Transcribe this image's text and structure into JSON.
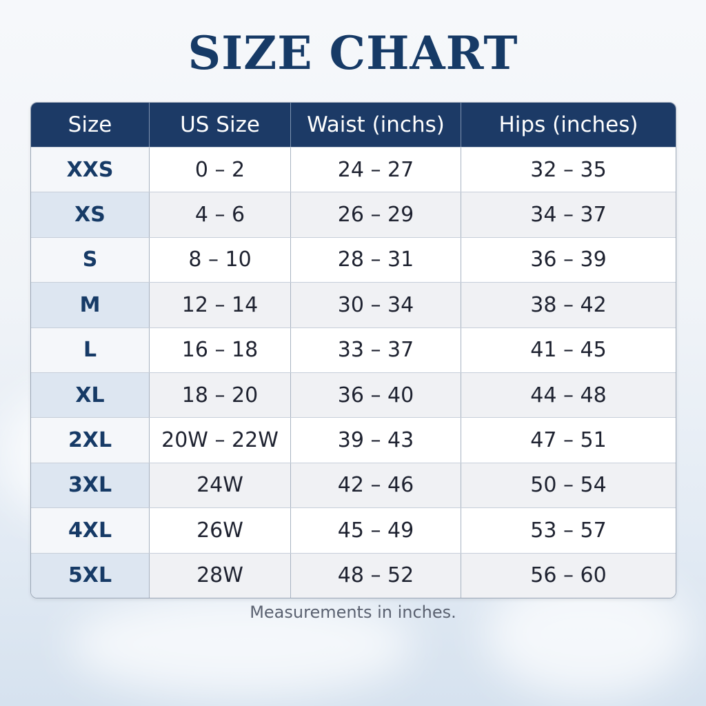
{
  "title": "SIZE CHART",
  "table": {
    "headers": [
      "Size",
      "US Size",
      "Waist (inchs)",
      "Hips (inches)"
    ],
    "rows": [
      [
        "XXS",
        "0 – 2",
        "24 – 27",
        "32 – 35"
      ],
      [
        "XS",
        "4 – 6",
        "26 – 29",
        "34 – 37"
      ],
      [
        "S",
        "8 – 10",
        "28 – 31",
        "36 – 39"
      ],
      [
        "M",
        "12 – 14",
        "30 – 34",
        "38 – 42"
      ],
      [
        "L",
        "16 – 18",
        "33 – 37",
        "41 – 45"
      ],
      [
        "XL",
        "18 – 20",
        "36 – 40",
        "44 – 48"
      ],
      [
        "2XL",
        "20W – 22W",
        "39 – 43",
        "47 – 51"
      ],
      [
        "3XL",
        "24W",
        "42 – 46",
        "50 – 54"
      ],
      [
        "4XL",
        "26W",
        "45 – 49",
        "53 – 57"
      ],
      [
        "5XL",
        "28W",
        "48 – 52",
        "56 – 60"
      ]
    ]
  },
  "note": "Measurements in inches.",
  "colors": {
    "header": "#1c3a66",
    "title": "#163a66"
  }
}
